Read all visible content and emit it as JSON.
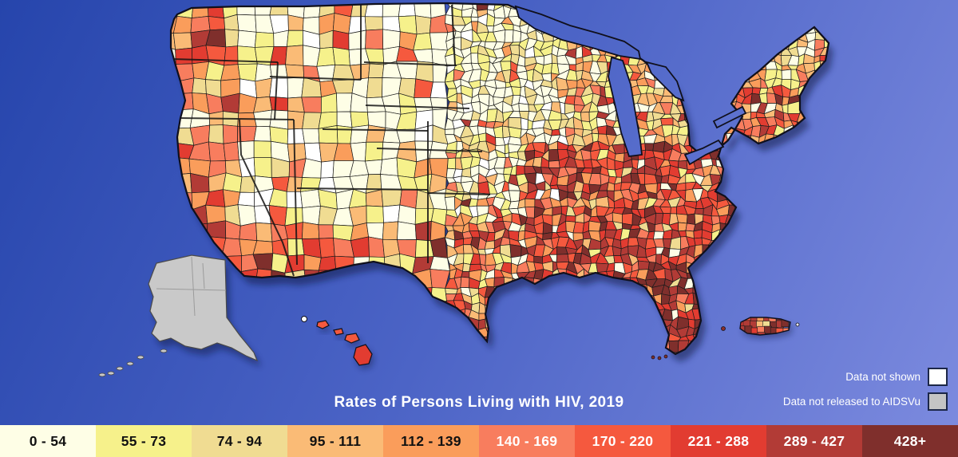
{
  "title": "Rates of Persons Living with HIV, 2019",
  "background_gradient": [
    "#2645AC",
    "#4C64C6",
    "#7D8BDF"
  ],
  "chart_data": {
    "type": "choropleth",
    "title": "Rates of Persons Living with HIV, 2019",
    "geography": "United States counties (contiguous US, Alaska, Hawaii, Puerto Rico shown)",
    "legend_position": "bottom",
    "classes": [
      {
        "label": "0 - 54",
        "color": "#FEFEE6",
        "text_color": "#111111"
      },
      {
        "label": "55 - 73",
        "color": "#F6F18B",
        "text_color": "#111111"
      },
      {
        "label": "74 - 94",
        "color": "#F0DC92",
        "text_color": "#111111"
      },
      {
        "label": "95 - 111",
        "color": "#FABB76",
        "text_color": "#111111"
      },
      {
        "label": "112 - 139",
        "color": "#FA9D5B",
        "text_color": "#111111"
      },
      {
        "label": "140 - 169",
        "color": "#F87D5E",
        "text_color": "#ffffff"
      },
      {
        "label": "170 - 220",
        "color": "#F5593E",
        "text_color": "#ffffff"
      },
      {
        "label": "221 - 288",
        "color": "#E23C31",
        "text_color": "#ffffff"
      },
      {
        "label": "289 - 427",
        "color": "#B23B36",
        "text_color": "#ffffff"
      },
      {
        "label": "428+",
        "color": "#7F2F2C",
        "text_color": "#ffffff"
      }
    ],
    "special_classes": [
      {
        "label": "Data not shown",
        "color": "#FFFFFF"
      },
      {
        "label": "Data not released to AIDSVu",
        "color": "#C4C4C4"
      }
    ],
    "regional_pattern": {
      "alaska": "gray - data not released to AIDSVu",
      "southeast_and_florida": "highest rate classes (red / dark red)",
      "northeast_corridor": "high rate classes (red / dark red)",
      "great_plains_upper_midwest": "lowest rate classes (white / pale yellow)",
      "mountain_west": "low classes with scattered orange",
      "west_coast_and_arizona": "moderate to high classes (orange / red)",
      "northern_new_england": "low classes (cream / yellow)",
      "hawaii": "red (high classes)",
      "puerto_rico": "mixed orange / red / dark red"
    }
  }
}
